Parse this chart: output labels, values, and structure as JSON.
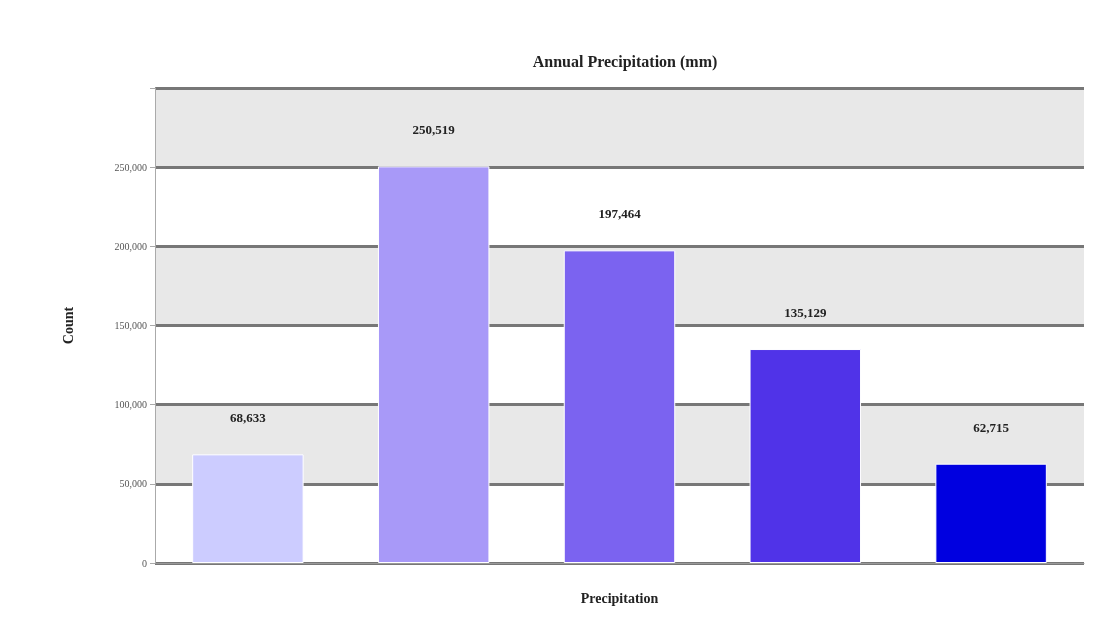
{
  "chart_data": {
    "type": "bar",
    "title": "Annual Precipitation (mm)",
    "xlabel": "Precipitation",
    "ylabel": "Count",
    "categories": [
      null,
      null,
      null,
      null,
      null
    ],
    "values": [
      68633,
      250519,
      197464,
      135129,
      62715
    ],
    "colors": [
      "#ccccff",
      "#a899f8",
      "#7b63f0",
      "#5033e8",
      "#0000e0"
    ],
    "value_labels": [
      "68,633",
      "250,519",
      "197,464",
      "135,129",
      "62,715"
    ],
    "ylim": [
      0,
      300000
    ],
    "yticks": [
      0,
      {
        "value": 50000,
        "label": "50,000"
      },
      {
        "value": 100000,
        "label": "100,000"
      },
      {
        "value": 150000,
        "label": "150,000"
      },
      {
        "value": 200000,
        "label": "200,000"
      },
      {
        "value": 250000,
        "label": "250,000"
      }
    ],
    "grid": "y"
  }
}
